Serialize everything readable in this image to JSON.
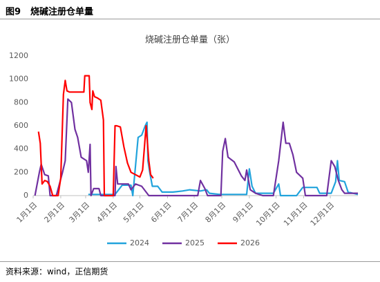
{
  "figure_label": "图9",
  "figure_title": "烧碱注册仓单量",
  "source": "资料来源：wind，正信期货",
  "chart_data": {
    "type": "line",
    "title": "烧碱注册仓单量（张）",
    "xlim": [
      0,
      365
    ],
    "xticks": [
      {
        "value": 0,
        "label": "1月1日"
      },
      {
        "value": 31,
        "label": "2月1日"
      },
      {
        "value": 59,
        "label": "3月1日"
      },
      {
        "value": 90,
        "label": "4月1日"
      },
      {
        "value": 120,
        "label": "5月1日"
      },
      {
        "value": 151,
        "label": "6月1日"
      },
      {
        "value": 181,
        "label": "7月1日"
      },
      {
        "value": 212,
        "label": "8月1日"
      },
      {
        "value": 243,
        "label": "9月1日"
      },
      {
        "value": 273,
        "label": "10月1日"
      },
      {
        "value": 304,
        "label": "11月1日"
      },
      {
        "value": 334,
        "label": "12月1日"
      }
    ],
    "ylim": [
      0,
      1200
    ],
    "yticks": [
      0,
      200,
      400,
      600,
      800,
      1000,
      1200
    ],
    "grid": false,
    "legend": "bottom",
    "series": [
      {
        "name": "2024",
        "color": "#21a3dc",
        "x": [
          62,
          70,
          80,
          92,
          100,
          105,
          110,
          112,
          118,
          122,
          126,
          128,
          129,
          131,
          134,
          140,
          145,
          157,
          168,
          176,
          188,
          195,
          198,
          210,
          226,
          240,
          243,
          246,
          250,
          270,
          276,
          278,
          292,
          296,
          303,
          319,
          322,
          335,
          340,
          342,
          344,
          350,
          354,
          365
        ],
        "values": [
          10,
          10,
          10,
          10,
          90,
          90,
          90,
          0,
          500,
          520,
          600,
          630,
          300,
          200,
          80,
          80,
          30,
          30,
          40,
          50,
          40,
          50,
          20,
          10,
          10,
          10,
          230,
          80,
          20,
          20,
          100,
          0,
          0,
          0,
          70,
          70,
          20,
          20,
          120,
          300,
          130,
          120,
          30,
          10
        ]
      },
      {
        "name": "2025",
        "color": "#7030a0",
        "x": [
          2,
          7,
          9,
          13,
          17,
          19,
          26,
          33,
          36,
          39,
          43,
          47,
          50,
          54,
          60,
          62,
          64,
          65,
          68,
          74,
          76,
          85,
          92,
          93,
          95,
          102,
          107,
          110,
          115,
          122,
          130,
          185,
          188,
          193,
          196,
          211,
          213,
          216,
          219,
          226,
          234,
          238,
          240,
          244,
          250,
          258,
          270,
          276,
          281,
          284,
          288,
          292,
          296,
          303,
          306,
          330,
          335,
          339,
          343,
          347,
          350,
          365
        ],
        "values": [
          0,
          200,
          270,
          180,
          170,
          0,
          0,
          200,
          300,
          830,
          800,
          570,
          500,
          330,
          300,
          200,
          440,
          0,
          60,
          60,
          0,
          0,
          0,
          250,
          100,
          100,
          100,
          50,
          100,
          80,
          0,
          0,
          130,
          60,
          0,
          0,
          380,
          490,
          330,
          290,
          170,
          130,
          220,
          50,
          20,
          0,
          0,
          300,
          630,
          450,
          450,
          350,
          200,
          150,
          0,
          0,
          300,
          250,
          130,
          50,
          20,
          20
        ]
      },
      {
        "name": "2026",
        "color": "#ff0000",
        "x": [
          6,
          8,
          10,
          13,
          16,
          19,
          22,
          25,
          28,
          31,
          34,
          36,
          38,
          41,
          45,
          50,
          55,
          57,
          58,
          63,
          64,
          66,
          67,
          69,
          72,
          76,
          79,
          80,
          81,
          85,
          90,
          92,
          94,
          98,
          102,
          106,
          110,
          115,
          120,
          123,
          127,
          130,
          132,
          135
        ],
        "values": [
          550,
          450,
          100,
          130,
          120,
          80,
          0,
          0,
          0,
          150,
          870,
          990,
          900,
          890,
          890,
          890,
          890,
          890,
          1030,
          1030,
          800,
          740,
          900,
          850,
          840,
          820,
          650,
          0,
          0,
          0,
          0,
          600,
          600,
          590,
          420,
          280,
          200,
          180,
          160,
          220,
          600,
          300,
          180,
          150
        ]
      }
    ]
  }
}
